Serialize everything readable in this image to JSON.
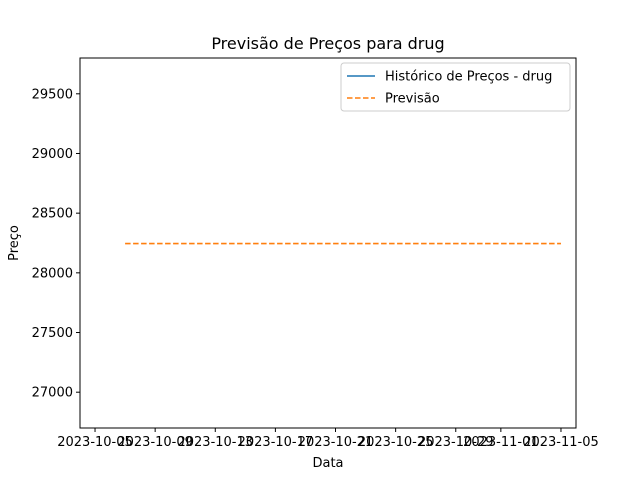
{
  "chart_data": {
    "type": "line",
    "title": "Previsão de Preços para drug",
    "xlabel": "Data",
    "ylabel": "Preço",
    "x_type": "date",
    "xlim": [
      "2023-10-04",
      "2023-11-06"
    ],
    "ylim": [
      26700,
      29800
    ],
    "x_ticks": [
      "2023-10-05",
      "2023-10-09",
      "2023-10-13",
      "2023-10-17",
      "2023-10-21",
      "2023-10-25",
      "2023-10-29",
      "2023-11-01",
      "2023-11-05"
    ],
    "y_ticks": [
      27000,
      27500,
      28000,
      28500,
      29000,
      29500
    ],
    "grid": false,
    "legend_position": "top-right",
    "series": [
      {
        "name": "Histórico de Preços - drug",
        "color": "#1f77b4",
        "style": "solid",
        "x": [],
        "y": []
      },
      {
        "name": "Previsão",
        "color": "#ff7f0e",
        "style": "dashed",
        "x": [
          "2023-10-07",
          "2023-11-05"
        ],
        "y": [
          28245,
          28245
        ]
      }
    ]
  }
}
